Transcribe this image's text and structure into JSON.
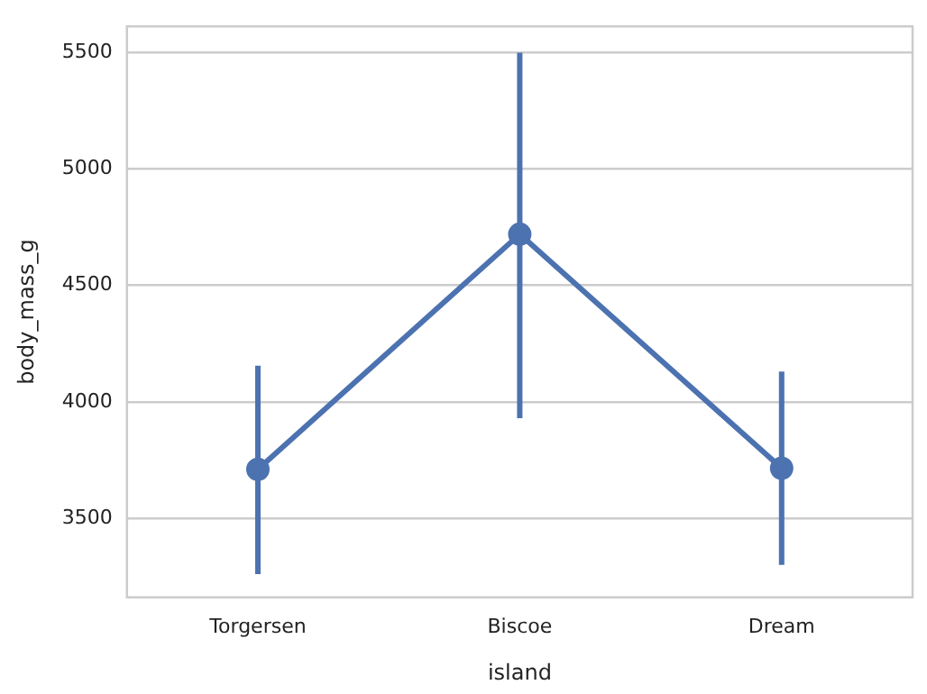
{
  "chart_data": {
    "type": "line",
    "xlabel": "island",
    "ylabel": "body_mass_g",
    "categories": [
      "Torgersen",
      "Biscoe",
      "Dream"
    ],
    "series": [
      {
        "color": "#4c72b0",
        "values": [
          3710,
          4720,
          3715
        ],
        "errors": [
          [
            3260,
            4155
          ],
          [
            3930,
            5500
          ],
          [
            3300,
            4130
          ]
        ]
      }
    ],
    "ylim": [
      3160,
      5613
    ],
    "yticks": [
      3500,
      4000,
      4500,
      5000,
      5500
    ],
    "grid": "y",
    "marker": "circle",
    "line_style": "solid",
    "legend": false
  }
}
